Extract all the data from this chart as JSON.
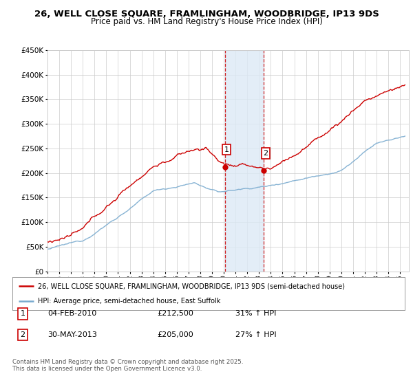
{
  "title": "26, WELL CLOSE SQUARE, FRAMLINGHAM, WOODBRIDGE, IP13 9DS",
  "subtitle": "Price paid vs. HM Land Registry's House Price Index (HPI)",
  "ylim": [
    0,
    450000
  ],
  "yticks": [
    0,
    50000,
    100000,
    150000,
    200000,
    250000,
    300000,
    350000,
    400000,
    450000
  ],
  "legend_line1": "26, WELL CLOSE SQUARE, FRAMLINGHAM, WOODBRIDGE, IP13 9DS (semi-detached house)",
  "legend_line2": "HPI: Average price, semi-detached house, East Suffolk",
  "sale1_date": "04-FEB-2010",
  "sale1_price": 212500,
  "sale1_pct": "31% ↑ HPI",
  "sale2_date": "30-MAY-2013",
  "sale2_price": 205000,
  "sale2_pct": "27% ↑ HPI",
  "footer": "Contains HM Land Registry data © Crown copyright and database right 2025.\nThis data is licensed under the Open Government Licence v3.0.",
  "line_color_red": "#cc0000",
  "line_color_blue": "#7aabcf",
  "shade_color": "#dce9f5",
  "grid_color": "#cccccc",
  "bg_color": "#ffffff",
  "sale1_x_year": 2010.09,
  "sale2_x_year": 2013.42,
  "xlim_start": 1995,
  "xlim_end": 2025.75
}
